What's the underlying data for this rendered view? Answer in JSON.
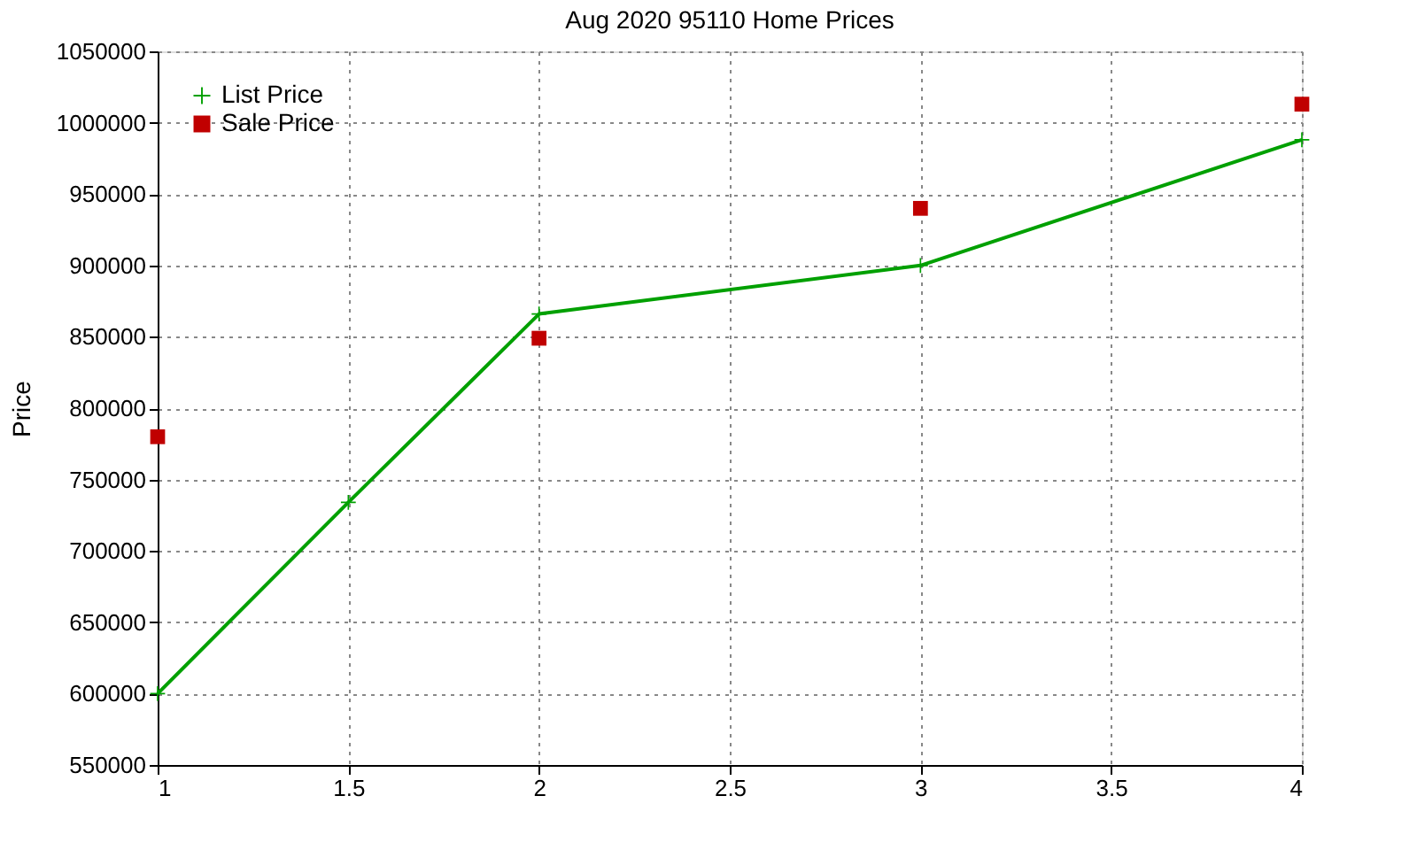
{
  "chart_data": {
    "type": "line",
    "title": "Aug 2020 95110 Home Prices",
    "ylabel": "Price",
    "series": [
      {
        "name": "List Price",
        "marker": "cross",
        "color": "#00a000",
        "x": [
          1,
          1.5,
          2,
          3,
          4
        ],
        "values": [
          600000,
          734000,
          866000,
          900000,
          988000
        ]
      },
      {
        "name": "Sale Price",
        "type": "scatter",
        "marker": "square",
        "color": "#c00000",
        "x": [
          1,
          2,
          3,
          4
        ],
        "values": [
          780000,
          849000,
          940000,
          1013000
        ]
      }
    ],
    "xlim": [
      1,
      4
    ],
    "xticks": [
      1,
      1.5,
      2,
      2.5,
      3,
      3.5,
      4
    ],
    "ylim": [
      550000,
      1050000
    ],
    "yticks": [
      550000,
      600000,
      650000,
      700000,
      750000,
      800000,
      850000,
      900000,
      950000,
      1000000,
      1050000
    ],
    "grid": true,
    "legend": "top left"
  }
}
